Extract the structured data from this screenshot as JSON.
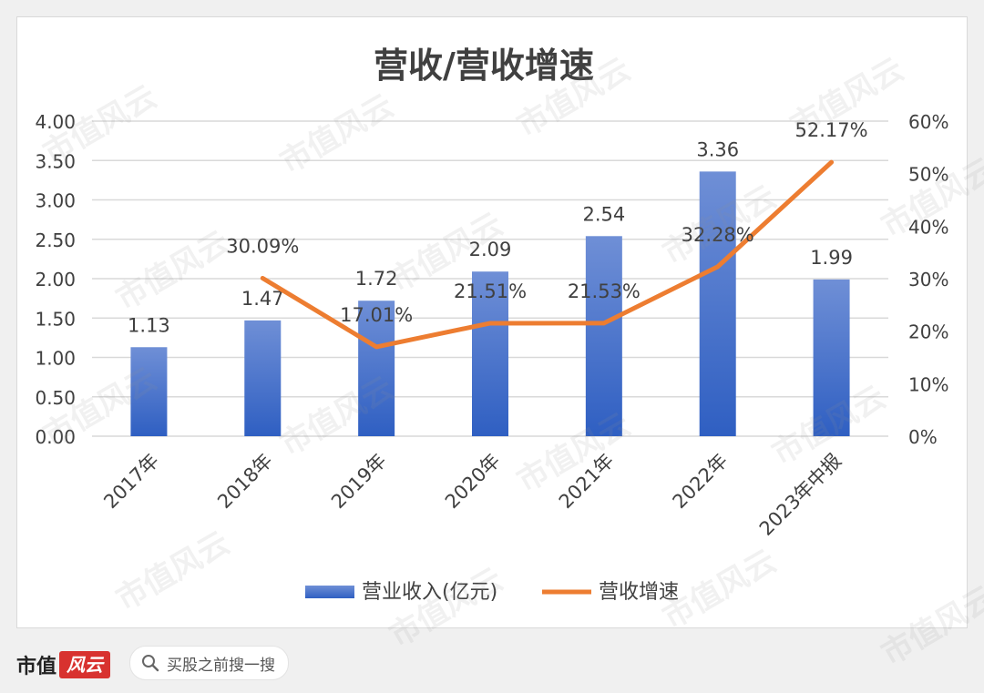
{
  "chart_data": {
    "type": "bar+line",
    "title": "营收/营收增速",
    "categories": [
      "2017年",
      "2018年",
      "2019年",
      "2020年",
      "2021年",
      "2022年",
      "2023年中报"
    ],
    "series": [
      {
        "name": "营业收入(亿元)",
        "kind": "bar",
        "axis": "left",
        "values": [
          1.13,
          1.47,
          1.72,
          2.09,
          2.54,
          3.36,
          1.99
        ],
        "labels": [
          "1.13",
          "1.47",
          "1.72",
          "2.09",
          "2.54",
          "3.36",
          "1.99"
        ],
        "color": "#4472c4"
      },
      {
        "name": "营收增速",
        "kind": "line",
        "axis": "right",
        "values": [
          null,
          30.09,
          17.01,
          21.51,
          21.53,
          32.28,
          52.17
        ],
        "labels": [
          "",
          "30.09%",
          "17.01%",
          "21.51%",
          "21.53%",
          "32.28%",
          "52.17%"
        ],
        "color": "#ed7d31"
      }
    ],
    "yleft": {
      "min": 0,
      "max": 4,
      "ticks": [
        "0.00",
        "0.50",
        "1.00",
        "1.50",
        "2.00",
        "2.50",
        "3.00",
        "3.50",
        "4.00"
      ]
    },
    "yright": {
      "min": 0,
      "max": 60,
      "ticks": [
        "0%",
        "10%",
        "20%",
        "30%",
        "40%",
        "50%",
        "60%"
      ]
    },
    "grid": true,
    "legend_position": "bottom"
  },
  "footer": {
    "brand_text": "市值",
    "brand_mark": "风云",
    "search_text": "买股之前搜一搜"
  },
  "watermark": "市值风云"
}
